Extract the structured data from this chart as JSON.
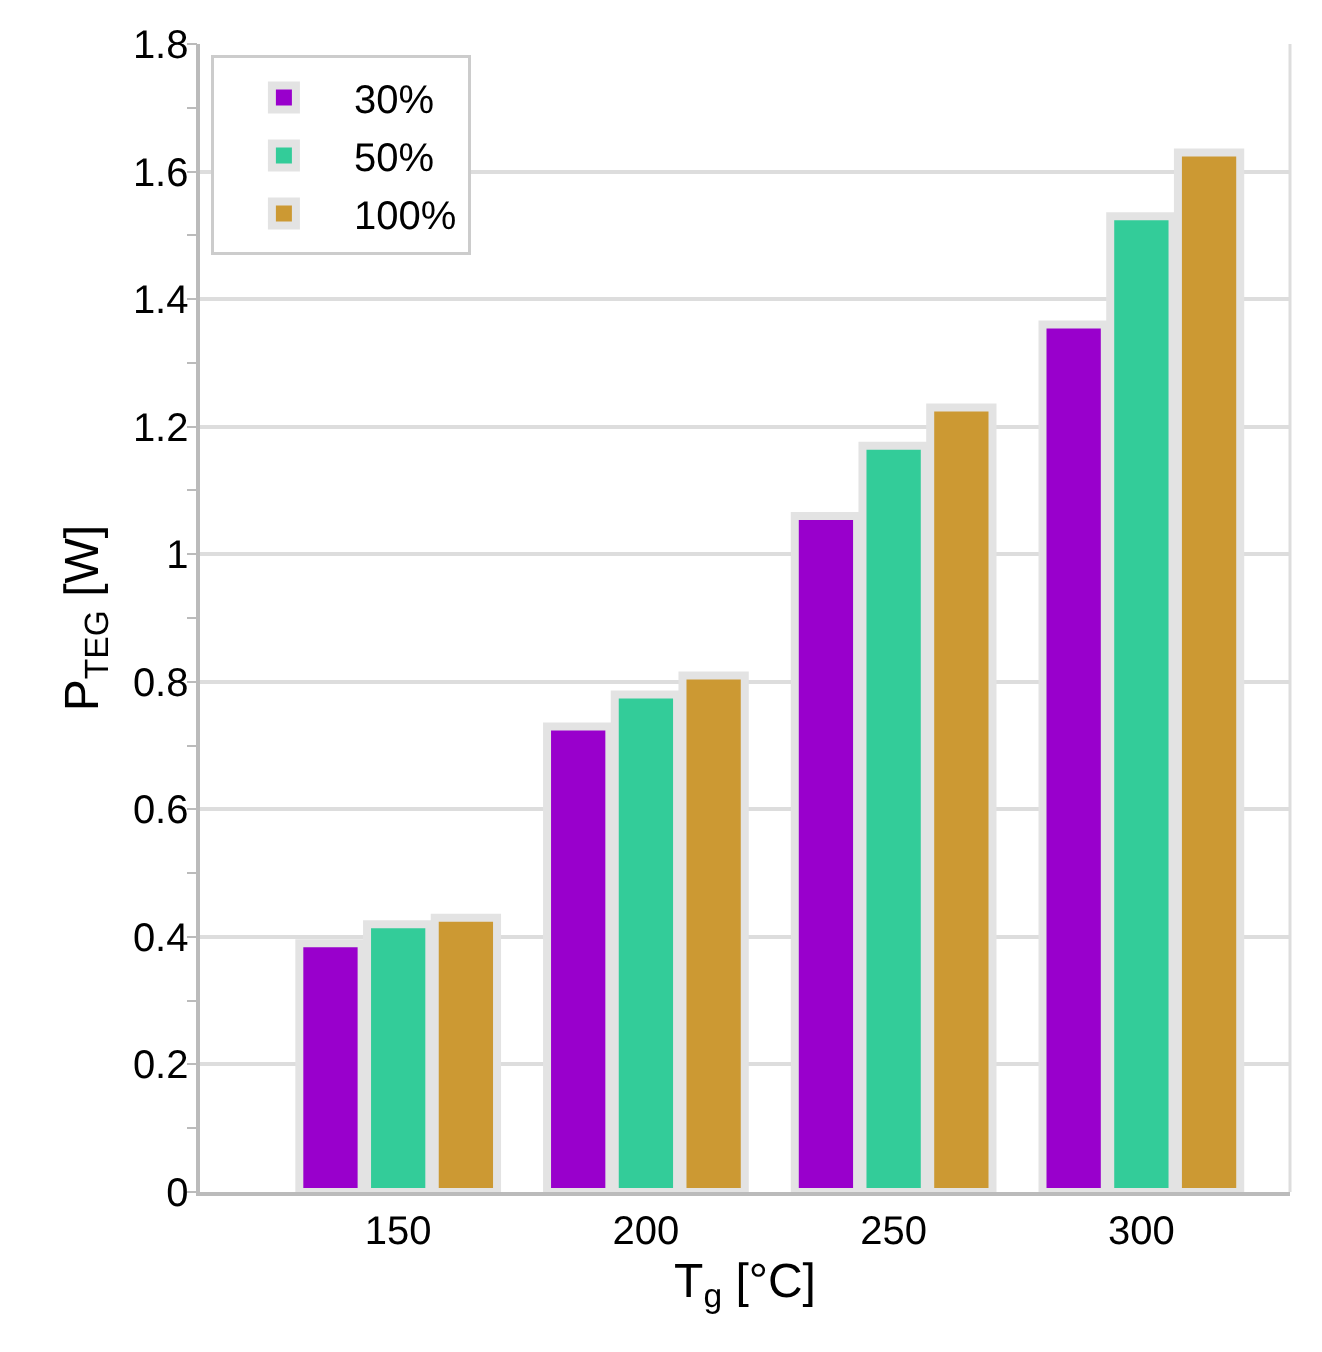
{
  "chart_data": {
    "type": "bar",
    "xlabel": "T$_{g}$ [°C]",
    "ylabel": "P$_{TEG}$ [W]",
    "categories": [
      "150",
      "200",
      "250",
      "300"
    ],
    "series": [
      {
        "name": "30%",
        "color": "#9900cc",
        "values": [
          0.39,
          0.73,
          1.06,
          1.36
        ]
      },
      {
        "name": "50%",
        "color": "#33cc99",
        "values": [
          0.42,
          0.78,
          1.17,
          1.53
        ]
      },
      {
        "name": "100%",
        "color": "#cc9933",
        "values": [
          0.43,
          0.81,
          1.23,
          1.63
        ]
      }
    ],
    "ylim": [
      0,
      1.8
    ],
    "yticks": [
      0,
      0.2,
      0.4,
      0.6,
      0.8,
      1,
      1.2,
      1.4,
      1.6,
      1.8
    ],
    "grid": "y",
    "legend": "top left"
  }
}
